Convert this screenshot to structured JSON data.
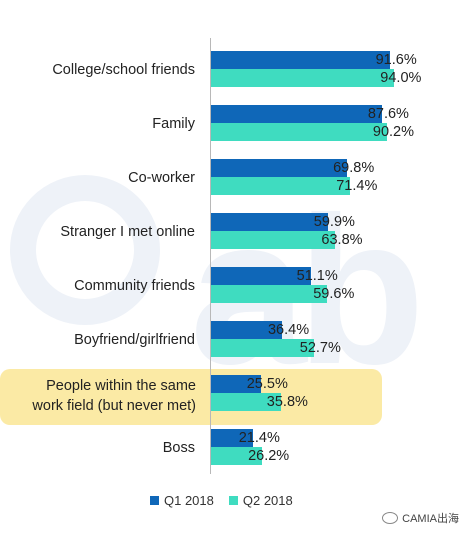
{
  "chart_data": {
    "type": "bar",
    "orientation": "horizontal",
    "categories": [
      "College/school friends",
      "Family",
      "Co-worker",
      "Stranger I met online",
      "Community friends",
      "Boyfriend/girlfriend",
      "People within the same work field (but never met)",
      "Boss"
    ],
    "highlighted_category_lines": [
      "People within the same",
      "work field (but never met)"
    ],
    "series": [
      {
        "name": "Q1 2018",
        "color": "#0f67b8",
        "values": [
          91.6,
          87.6,
          69.8,
          59.9,
          51.1,
          36.4,
          25.5,
          21.4
        ],
        "labels": [
          "91.6%",
          "87.6%",
          "69.8%",
          "59.9%",
          "51.1%",
          "36.4%",
          "25.5%",
          "21.4%"
        ]
      },
      {
        "name": "Q2 2018",
        "color": "#3fdcc0",
        "values": [
          94.0,
          90.2,
          71.4,
          63.8,
          59.6,
          52.7,
          35.8,
          26.2
        ],
        "labels": [
          "94.0%",
          "90.2%",
          "71.4%",
          "63.8%",
          "59.6%",
          "52.7%",
          "35.8%",
          "26.2%"
        ]
      }
    ],
    "xlim": [
      0,
      100
    ],
    "legend_position": "bottom",
    "grid": false
  },
  "watermark": {
    "text": "CAMIA出海",
    "color": "#eef2f8"
  }
}
